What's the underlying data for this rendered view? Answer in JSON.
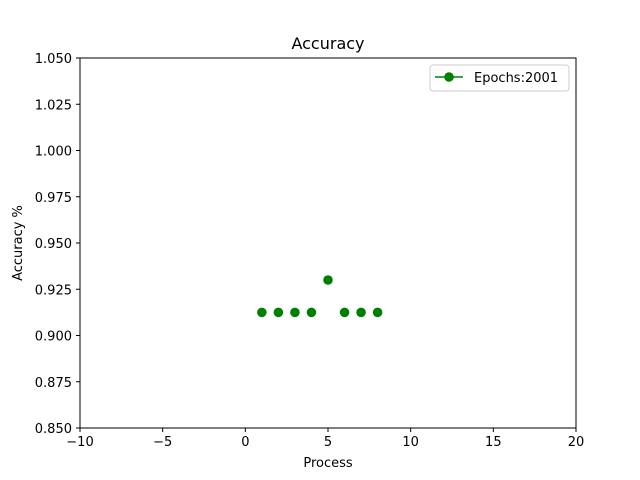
{
  "chart_data": {
    "type": "scatter",
    "title": "Accuracy",
    "xlabel": "Process",
    "ylabel": "Accuracy %",
    "xlim": [
      -10,
      20
    ],
    "ylim": [
      0.85,
      1.05
    ],
    "xticks": [
      -10,
      -5,
      0,
      5,
      10,
      15,
      20
    ],
    "xtick_labels": [
      "−10",
      "−5",
      "0",
      "5",
      "10",
      "15",
      "20"
    ],
    "yticks": [
      0.85,
      0.875,
      0.9,
      0.925,
      0.95,
      0.975,
      1.0,
      1.025,
      1.05
    ],
    "ytick_labels": [
      "0.850",
      "0.875",
      "0.900",
      "0.925",
      "0.950",
      "0.975",
      "1.000",
      "1.025",
      "1.050"
    ],
    "grid": false,
    "legend_position": "top-right",
    "series": [
      {
        "name": "Epochs:2001",
        "color": "#008000",
        "marker": "circle",
        "x": [
          1,
          2,
          3,
          4,
          5,
          6,
          7,
          8
        ],
        "y": [
          0.9125,
          0.9125,
          0.9125,
          0.9125,
          0.93,
          0.9125,
          0.9125,
          0.9125
        ]
      }
    ]
  }
}
